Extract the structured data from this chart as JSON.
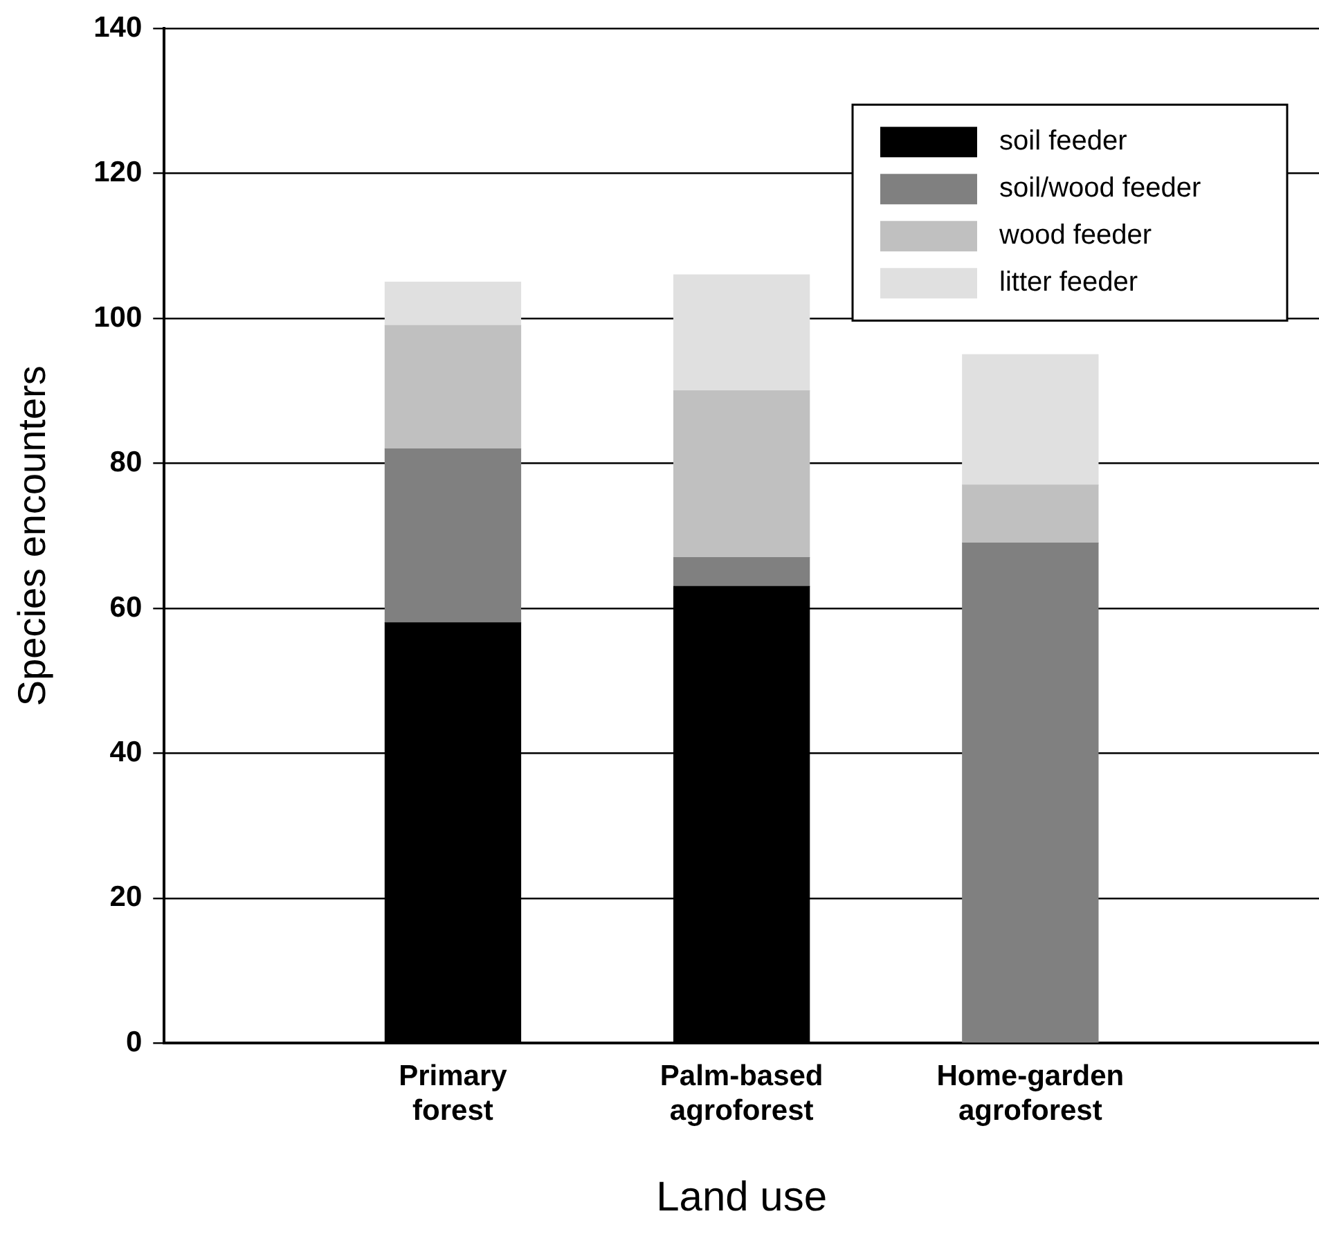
{
  "chart_data": {
    "type": "bar",
    "stacked": true,
    "xlabel": "Land use",
    "ylabel": "Species encounters",
    "categories": [
      "Primary forest",
      "Palm-based agroforest",
      "Home-garden agroforest"
    ],
    "series": [
      {
        "name": "soil feeder",
        "color": "#000000",
        "values": [
          58,
          63,
          0
        ]
      },
      {
        "name": "soil/wood feeder",
        "color": "#808080",
        "values": [
          24,
          4,
          69
        ]
      },
      {
        "name": "wood feeder",
        "color": "#c0c0c0",
        "values": [
          17,
          23,
          8
        ]
      },
      {
        "name": "litter feeder",
        "color": "#e0e0e0",
        "values": [
          6,
          16,
          18
        ]
      }
    ],
    "ylim": [
      0,
      140
    ],
    "yticks": [
      0,
      20,
      40,
      60,
      80,
      100,
      120,
      140
    ],
    "grid": "y",
    "legend": "top right"
  }
}
